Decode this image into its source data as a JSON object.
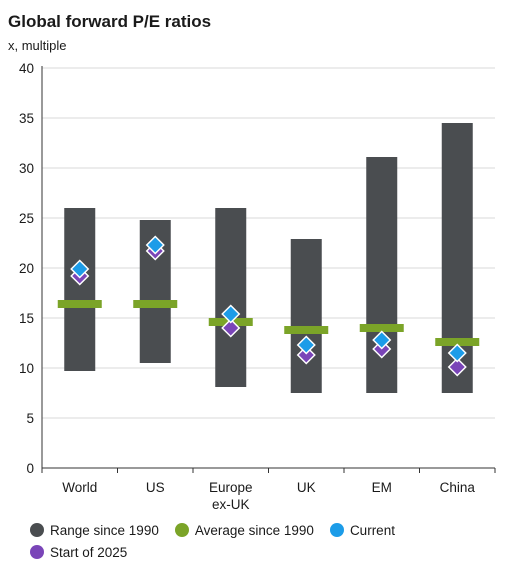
{
  "chart_data": {
    "type": "range",
    "title": "Global forward P/E ratios",
    "subtitle": "x, multiple",
    "ylim": [
      0,
      40
    ],
    "yticks": [
      0,
      5,
      10,
      15,
      20,
      25,
      30,
      35,
      40
    ],
    "categories": [
      "World",
      "US",
      "Europe ex-UK",
      "UK",
      "EM",
      "China"
    ],
    "category_lines": [
      [
        "World"
      ],
      [
        "US"
      ],
      [
        "Europe",
        "ex-UK"
      ],
      [
        "UK"
      ],
      [
        "EM"
      ],
      [
        "China"
      ]
    ],
    "range_since_1990": [
      [
        9.7,
        26.0
      ],
      [
        10.5,
        24.8
      ],
      [
        8.1,
        26.0
      ],
      [
        7.5,
        22.9
      ],
      [
        7.5,
        31.1
      ],
      [
        7.5,
        34.5
      ]
    ],
    "average_since_1990": [
      16.4,
      16.4,
      14.6,
      13.8,
      14.0,
      12.6
    ],
    "current": [
      19.9,
      22.3,
      15.4,
      12.3,
      12.8,
      11.5
    ],
    "start_of_2025": [
      19.2,
      21.7,
      14.0,
      11.3,
      11.9,
      10.1
    ],
    "grid": true,
    "legend_position": "bottom",
    "legend": [
      {
        "label": "Range since 1990",
        "color": "#4a4d50"
      },
      {
        "label": "Average since 1990",
        "color": "#7ba428"
      },
      {
        "label": "Current",
        "color": "#1c9ce8"
      },
      {
        "label": "Start of 2025",
        "color": "#7a45b8"
      }
    ]
  }
}
